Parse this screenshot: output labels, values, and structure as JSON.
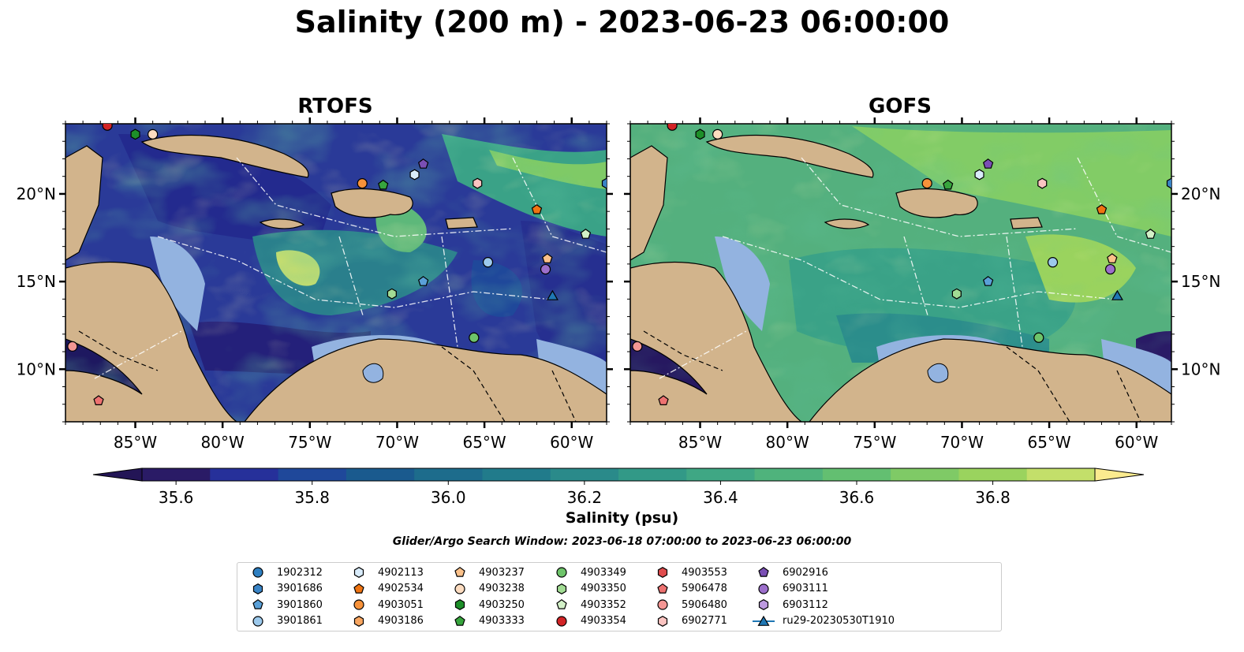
{
  "title": "Salinity (200 m) - 2023-06-23 06:00:00",
  "panels": [
    {
      "title": "RTOFS"
    },
    {
      "title": "GOFS"
    }
  ],
  "axes": {
    "lon_ticks": [
      "85°W",
      "80°W",
      "75°W",
      "70°W",
      "65°W",
      "60°W"
    ],
    "lat_ticks": [
      "20°N",
      "15°N",
      "10°N"
    ],
    "lon_range": [
      -89,
      -58
    ],
    "lat_range": [
      7,
      24
    ]
  },
  "colorbar": {
    "label": "Salinity (psu)",
    "ticks": [
      "35.6",
      "35.8",
      "36.0",
      "36.2",
      "36.4",
      "36.6",
      "36.8"
    ],
    "range": [
      35.55,
      36.95
    ],
    "colors": [
      "#2a1b66",
      "#26309a",
      "#1f489a",
      "#1a5a8e",
      "#1d6c8c",
      "#217b8b",
      "#2a8a8a",
      "#329987",
      "#3fa784",
      "#4fb37c",
      "#63bf71",
      "#7fca66",
      "#9ad35e",
      "#c3df6a"
    ],
    "extend_low": "#231556",
    "extend_high": "#fbeb8f"
  },
  "search_window": "Glider/Argo Search Window: 2023-06-18 07:00:00 to 2023-06-23 06:00:00",
  "legend": [
    {
      "label": "1902312",
      "marker": "circle",
      "color": "#2e7fc1"
    },
    {
      "label": "3901686",
      "marker": "hexagon",
      "color": "#3a84c6"
    },
    {
      "label": "3901860",
      "marker": "pentagon",
      "color": "#5aa0d8"
    },
    {
      "label": "3901861",
      "marker": "circle",
      "color": "#9cc9ec"
    },
    {
      "label": "4902113",
      "marker": "hexagon",
      "color": "#d9ecfb"
    },
    {
      "label": "4902534",
      "marker": "pentagon",
      "color": "#ef7412"
    },
    {
      "label": "4903051",
      "marker": "circle",
      "color": "#f7923a"
    },
    {
      "label": "4903186",
      "marker": "hexagon",
      "color": "#f8a661"
    },
    {
      "label": "4903237",
      "marker": "pentagon",
      "color": "#fbc18a"
    },
    {
      "label": "4903238",
      "marker": "circle",
      "color": "#fcdcc0"
    },
    {
      "label": "4903250",
      "marker": "hexagon",
      "color": "#1d8f29"
    },
    {
      "label": "4903333",
      "marker": "pentagon",
      "color": "#37a53d"
    },
    {
      "label": "4903349",
      "marker": "circle",
      "color": "#6ec46a"
    },
    {
      "label": "4903350",
      "marker": "hexagon",
      "color": "#a2dc94"
    },
    {
      "label": "4903352",
      "marker": "pentagon",
      "color": "#d3f1c8"
    },
    {
      "label": "4903354",
      "marker": "circle",
      "color": "#d22426"
    },
    {
      "label": "4903553",
      "marker": "hexagon",
      "color": "#e04c4d"
    },
    {
      "label": "5906478",
      "marker": "pentagon",
      "color": "#ed7271"
    },
    {
      "label": "5906480",
      "marker": "circle",
      "color": "#f49694"
    },
    {
      "label": "6902771",
      "marker": "hexagon",
      "color": "#fbc4c1"
    },
    {
      "label": "6902916",
      "marker": "pentagon",
      "color": "#7a4fb4"
    },
    {
      "label": "6903111",
      "marker": "circle",
      "color": "#9c6fcb"
    },
    {
      "label": "6903112",
      "marker": "hexagon",
      "color": "#bd9ae0"
    },
    {
      "label": "ru29-20230530T1910",
      "marker": "triangle",
      "color": "#1f77b4"
    }
  ],
  "map_markers": [
    {
      "id": "5906480",
      "lon": -88.6,
      "lat": 11.3
    },
    {
      "id": "5906478",
      "lon": -87.1,
      "lat": 8.2
    },
    {
      "id": "4903354",
      "lon": -86.6,
      "lat": 23.9
    },
    {
      "id": "4903250",
      "lon": -85.0,
      "lat": 23.4
    },
    {
      "id": "4903238",
      "lon": -84.0,
      "lat": 23.4
    },
    {
      "id": "4903051",
      "lon": -72.0,
      "lat": 20.6
    },
    {
      "id": "4903333",
      "lon": -70.8,
      "lat": 20.5
    },
    {
      "id": "4902113",
      "lon": -69.0,
      "lat": 21.1
    },
    {
      "id": "6902916",
      "lon": -68.5,
      "lat": 21.7
    },
    {
      "id": "6902771",
      "lon": -65.4,
      "lat": 20.6
    },
    {
      "id": "4902534",
      "lon": -62.0,
      "lat": 19.1
    },
    {
      "id": "4903352",
      "lon": -59.2,
      "lat": 17.7
    },
    {
      "id": "3901686",
      "lon": -58.0,
      "lat": 20.6
    },
    {
      "id": "3901861",
      "lon": -64.8,
      "lat": 16.1
    },
    {
      "id": "4903237",
      "lon": -61.4,
      "lat": 16.3
    },
    {
      "id": "6903111",
      "lon": -61.5,
      "lat": 15.7
    },
    {
      "id": "3901860",
      "lon": -68.5,
      "lat": 15.0
    },
    {
      "id": "4903350",
      "lon": -70.3,
      "lat": 14.3
    },
    {
      "id": "ru29-20230530T1910",
      "lon": -61.1,
      "lat": 14.2
    },
    {
      "id": "4903349",
      "lon": -65.6,
      "lat": 11.8
    }
  ]
}
